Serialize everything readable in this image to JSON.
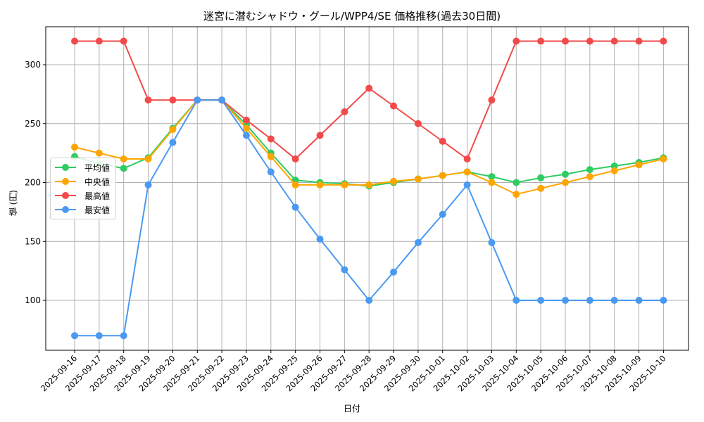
{
  "chart_data": {
    "type": "line",
    "title": "迷宮に潜むシャドウ・グール/WPP4/SE 価格推移(過去30日間)",
    "xlabel": "日付",
    "ylabel": "値 (円)",
    "x": [
      "2025-09-16",
      "2025-09-17",
      "2025-09-18",
      "2025-09-19",
      "2025-09-20",
      "2025-09-21",
      "2025-09-22",
      "2025-09-23",
      "2025-09-24",
      "2025-09-25",
      "2025-09-26",
      "2025-09-27",
      "2025-09-28",
      "2025-09-29",
      "2025-09-30",
      "2025-10-01",
      "2025-10-02",
      "2025-10-03",
      "2025-10-04",
      "2025-10-05",
      "2025-10-06",
      "2025-10-07",
      "2025-10-08",
      "2025-10-09",
      "2025-10-10"
    ],
    "yticks": [
      100,
      150,
      200,
      250,
      300
    ],
    "ylim": [
      58,
      332
    ],
    "grid": true,
    "legend_position": "center left",
    "series": [
      {
        "name": "平均値",
        "color": "#2ecc61",
        "values": [
          222,
          216,
          212,
          221,
          246,
          270,
          270,
          249,
          225,
          202,
          200,
          199,
          197,
          200,
          203,
          206,
          209,
          205,
          200,
          204,
          207,
          211,
          214,
          217,
          221
        ]
      },
      {
        "name": "中央値",
        "color": "#ffa500",
        "values": [
          230,
          225,
          220,
          220,
          245,
          270,
          270,
          246,
          222,
          198,
          198,
          198,
          198,
          201,
          203,
          206,
          209,
          200,
          190,
          195,
          200,
          205,
          210,
          215,
          220
        ]
      },
      {
        "name": "最高値",
        "color": "#f24a4a",
        "values": [
          320,
          320,
          320,
          270,
          270,
          270,
          270,
          253,
          237,
          220,
          240,
          260,
          280,
          265,
          250,
          235,
          220,
          270,
          320,
          320,
          320,
          320,
          320,
          320,
          320
        ]
      },
      {
        "name": "最安値",
        "color": "#4a9af2",
        "values": [
          70,
          70,
          70,
          198,
          234,
          270,
          270,
          240,
          209,
          179,
          152,
          126,
          100,
          124,
          149,
          173,
          198,
          149,
          100,
          100,
          100,
          100,
          100,
          100,
          100
        ]
      }
    ]
  }
}
